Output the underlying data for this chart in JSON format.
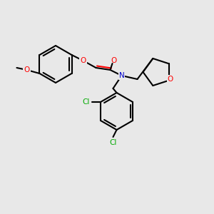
{
  "background_color": "#e8e8e8",
  "bond_color": "#000000",
  "bond_width": 1.5,
  "atom_colors": {
    "O": "#ff0000",
    "N": "#0000cc",
    "Cl": "#00aa00",
    "C": "#000000"
  },
  "font_size": 7.5
}
